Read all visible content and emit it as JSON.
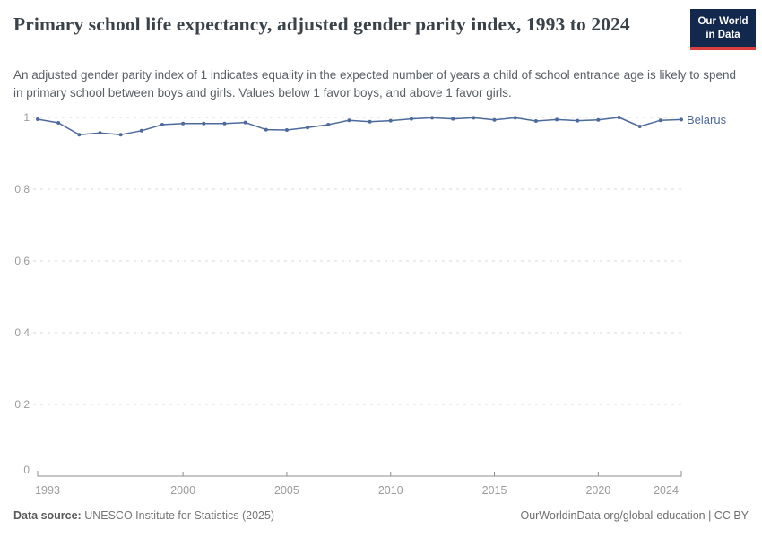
{
  "header": {
    "title": "Primary school life expectancy, adjusted gender parity index, 1993 to 2024",
    "subtitle": "An adjusted gender parity index of 1 indicates equality in the expected number of years a child of school entrance age is likely to spend in primary school between boys and girls. Values below 1 favor boys, and above 1 favor girls.",
    "logo": {
      "line1": "Our World",
      "line2": "in Data",
      "bg_color": "#12294d",
      "accent_color": "#dc3d3d"
    }
  },
  "chart_data": {
    "type": "line",
    "title": "Primary school life expectancy, adjusted gender parity index, 1993 to 2024",
    "xlabel": "",
    "ylabel": "",
    "xlim": [
      1993,
      2024
    ],
    "ylim": [
      0,
      1
    ],
    "grid": "horizontal-dashed",
    "legend_position": "line-end-label",
    "x": [
      1993,
      1994,
      1995,
      1996,
      1997,
      1998,
      1999,
      2000,
      2001,
      2002,
      2003,
      2004,
      2005,
      2006,
      2007,
      2008,
      2009,
      2010,
      2011,
      2012,
      2013,
      2014,
      2015,
      2016,
      2017,
      2018,
      2019,
      2020,
      2021,
      2022,
      2023,
      2024
    ],
    "series": [
      {
        "name": "Belarus",
        "color": "#4c6a9c",
        "values": [
          0.995,
          0.985,
          0.952,
          0.957,
          0.952,
          0.963,
          0.98,
          0.983,
          0.983,
          0.983,
          0.986,
          0.966,
          0.965,
          0.972,
          0.98,
          0.992,
          0.988,
          0.991,
          0.996,
          0.999,
          0.996,
          0.999,
          0.993,
          0.999,
          0.99,
          0.994,
          0.991,
          0.993,
          1.0,
          0.975,
          0.992,
          0.994
        ]
      }
    ],
    "x_ticks": [
      1993,
      2000,
      2005,
      2010,
      2015,
      2020,
      2024
    ],
    "x_tick_labels": [
      "1993",
      "2000",
      "2005",
      "2010",
      "2015",
      "2020",
      "2024"
    ],
    "y_ticks": [
      0,
      0.2,
      0.4,
      0.6,
      0.8,
      1
    ],
    "y_tick_labels": [
      "0",
      "0.2",
      "0.4",
      "0.6",
      "0.8",
      "1"
    ],
    "axis_color": "#8c8c8c",
    "tick_label_color": "#9b9b9b",
    "gridline_color": "#d9d9d9"
  },
  "footer": {
    "source_label": "Data source:",
    "source_text": " UNESCO Institute for Statistics (2025)",
    "credit": "OurWorldinData.org/global-education | CC BY"
  }
}
